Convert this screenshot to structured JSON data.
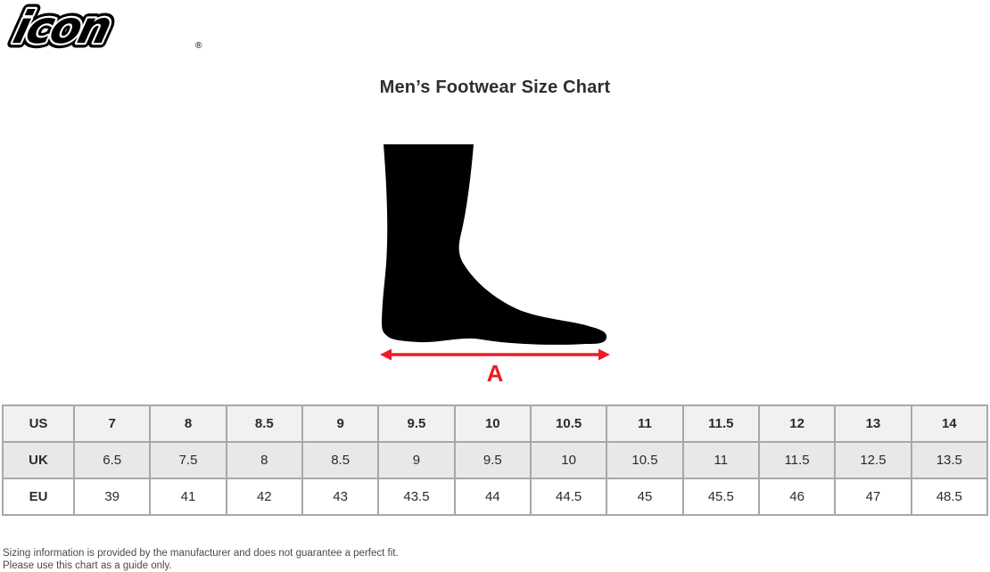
{
  "logo": {
    "wordmark": "icon",
    "registered": "®"
  },
  "title": "Men’s Footwear Size Chart",
  "diagram": {
    "arrow_label": "A",
    "arrow_color": "#ed1c24",
    "foot_color": "#000000"
  },
  "size_table": {
    "rows": [
      {
        "label": "US",
        "values": [
          "7",
          "8",
          "8.5",
          "9",
          "9.5",
          "10",
          "10.5",
          "11",
          "11.5",
          "12",
          "13",
          "14"
        ]
      },
      {
        "label": "UK",
        "values": [
          "6.5",
          "7.5",
          "8",
          "8.5",
          "9",
          "9.5",
          "10",
          "10.5",
          "11",
          "11.5",
          "12.5",
          "13.5"
        ]
      },
      {
        "label": "EU",
        "values": [
          "39",
          "41",
          "42",
          "43",
          "43.5",
          "44",
          "44.5",
          "45",
          "45.5",
          "46",
          "47",
          "48.5"
        ]
      }
    ]
  },
  "footer": {
    "line1": "Sizing information is provided by the manufacturer and does not guarantee a perfect fit.",
    "line2": "Please use this chart as a guide only."
  }
}
